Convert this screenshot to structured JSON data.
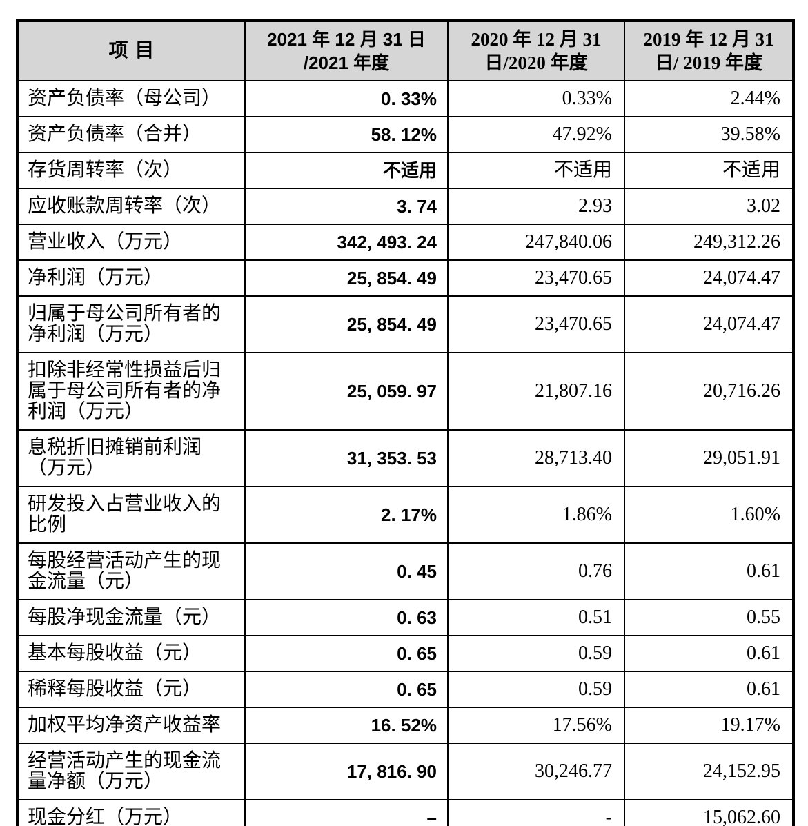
{
  "table": {
    "header": {
      "item_label": "项目",
      "col_2021": "2021 年 12 月 31 日\n/2021 年度",
      "col_2020": "2020 年 12 月 31\n日/2020 年度",
      "col_2019": "2019 年 12 月 31\n日/ 2019 年度"
    },
    "rows": [
      {
        "label": "资产负债率（母公司）",
        "y2021": "0. 33%",
        "y2020": "0.33%",
        "y2019": "2.44%"
      },
      {
        "label": "资产负债率（合并）",
        "y2021": "58. 12%",
        "y2020": "47.92%",
        "y2019": "39.58%"
      },
      {
        "label": "存货周转率（次）",
        "y2021": "不适用",
        "y2020": "不适用",
        "y2019": "不适用"
      },
      {
        "label": "应收账款周转率（次）",
        "y2021": "3. 74",
        "y2020": "2.93",
        "y2019": "3.02"
      },
      {
        "label": "营业收入（万元）",
        "y2021": "342, 493. 24",
        "y2020": "247,840.06",
        "y2019": "249,312.26"
      },
      {
        "label": "净利润（万元）",
        "y2021": "25, 854. 49",
        "y2020": "23,470.65",
        "y2019": "24,074.47"
      },
      {
        "label": "归属于母公司所有者的\n净利润（万元）",
        "y2021": "25, 854. 49",
        "y2020": "23,470.65",
        "y2019": "24,074.47"
      },
      {
        "label": "扣除非经常性损益后归\n属于母公司所有者的净\n利润（万元）",
        "y2021": "25, 059. 97",
        "y2020": "21,807.16",
        "y2019": "20,716.26"
      },
      {
        "label": "息税折旧摊销前利润\n（万元）",
        "y2021": "31, 353. 53",
        "y2020": "28,713.40",
        "y2019": "29,051.91"
      },
      {
        "label": "研发投入占营业收入的\n比例",
        "y2021": "2. 17%",
        "y2020": "1.86%",
        "y2019": "1.60%"
      },
      {
        "label": "每股经营活动产生的现\n金流量（元）",
        "y2021": "0. 45",
        "y2020": "0.76",
        "y2019": "0.61"
      },
      {
        "label": "每股净现金流量（元）",
        "y2021": "0. 63",
        "y2020": "0.51",
        "y2019": "0.55"
      },
      {
        "label": "基本每股收益（元）",
        "y2021": "0. 65",
        "y2020": "0.59",
        "y2019": "0.61"
      },
      {
        "label": "稀释每股收益（元）",
        "y2021": "0. 65",
        "y2020": "0.59",
        "y2019": "0.61"
      },
      {
        "label": "加权平均净资产收益率",
        "y2021": "16. 52%",
        "y2020": "17.56%",
        "y2019": "19.17%"
      },
      {
        "label": "经营活动产生的现金流\n量净额（万元）",
        "y2021": "17, 816. 90",
        "y2020": "30,246.77",
        "y2019": "24,152.95"
      },
      {
        "label": "现金分红（万元）",
        "y2021": "–",
        "y2020": "-",
        "y2019": "15,062.60"
      }
    ],
    "colors": {
      "header_bg": "#d6d6d6",
      "border": "#000000",
      "text": "#000000",
      "page_bg": "#ffffff"
    }
  }
}
